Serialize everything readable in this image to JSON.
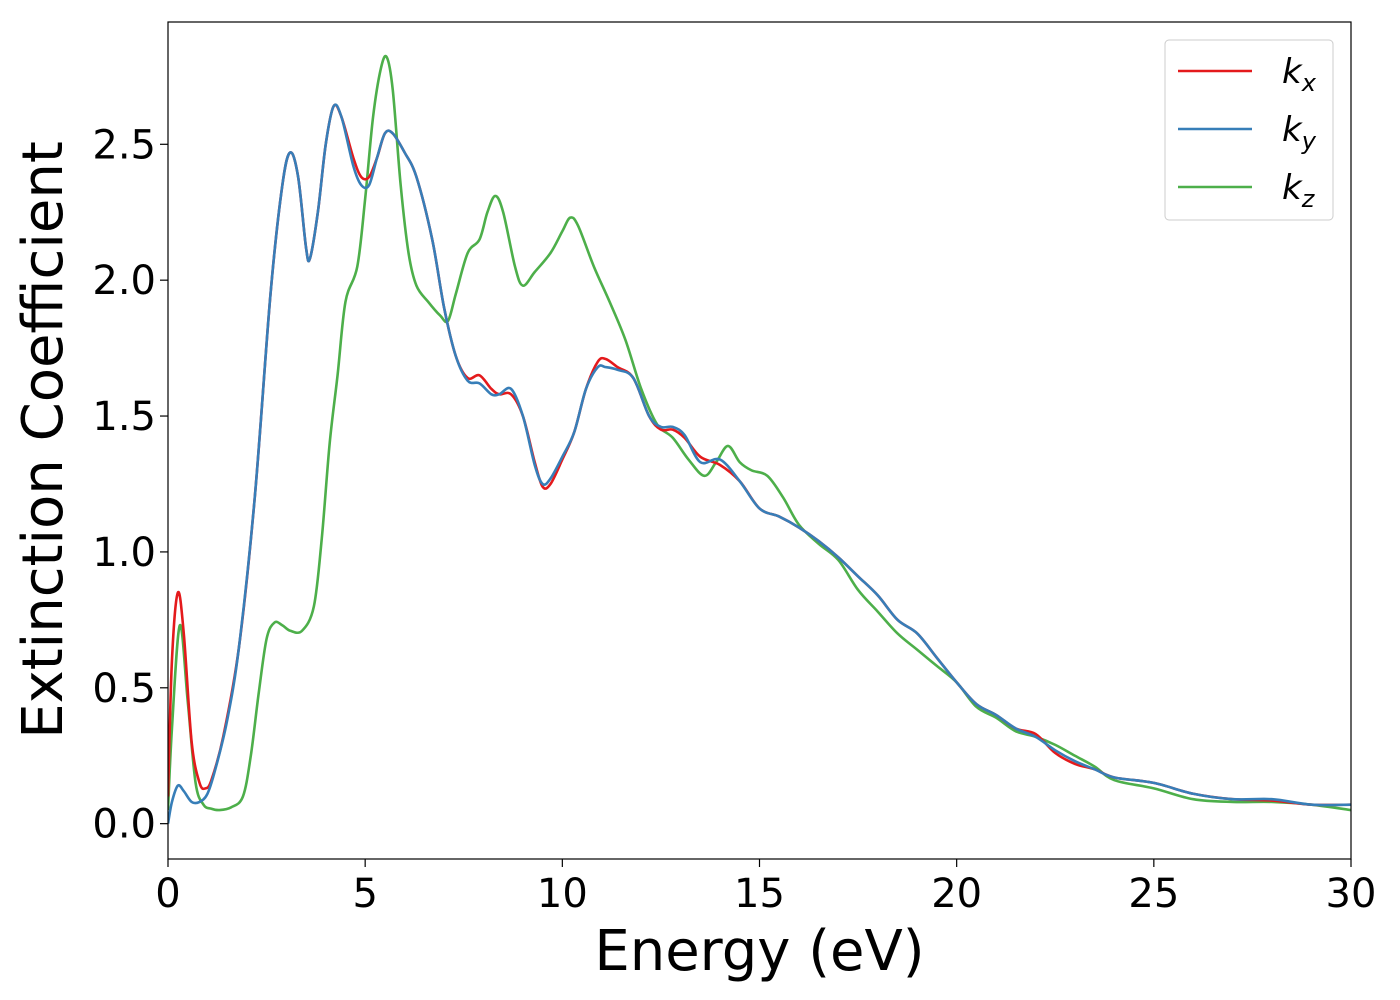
{
  "chart_data": {
    "type": "line",
    "xlabel": "Energy (eV)",
    "ylabel": "Extinction Coefficient",
    "xlim": [
      0,
      30
    ],
    "ylim": [
      -0.13,
      2.95
    ],
    "x_ticks": [
      0,
      5,
      10,
      15,
      20,
      25,
      30
    ],
    "x_tick_labels": [
      "0",
      "5",
      "10",
      "15",
      "20",
      "25",
      "30"
    ],
    "y_ticks": [
      0.0,
      0.5,
      1.0,
      1.5,
      2.0,
      2.5
    ],
    "y_tick_labels": [
      "0.0",
      "0.5",
      "1.0",
      "1.5",
      "2.0",
      "2.5"
    ],
    "grid": false,
    "legend_position": "top-right",
    "series": [
      {
        "name": "k_x",
        "label_base": "k",
        "label_sub": "x",
        "color": "#e41a1c",
        "points": [
          [
            0,
            0.1
          ],
          [
            0.1,
            0.6
          ],
          [
            0.25,
            0.85
          ],
          [
            0.4,
            0.7
          ],
          [
            0.6,
            0.3
          ],
          [
            0.8,
            0.15
          ],
          [
            0.95,
            0.13
          ],
          [
            1.1,
            0.16
          ],
          [
            1.4,
            0.32
          ],
          [
            1.8,
            0.65
          ],
          [
            2.2,
            1.2
          ],
          [
            2.6,
            1.95
          ],
          [
            2.9,
            2.35
          ],
          [
            3.1,
            2.47
          ],
          [
            3.3,
            2.38
          ],
          [
            3.5,
            2.12
          ],
          [
            3.6,
            2.08
          ],
          [
            3.8,
            2.25
          ],
          [
            4.0,
            2.5
          ],
          [
            4.2,
            2.64
          ],
          [
            4.4,
            2.6
          ],
          [
            4.7,
            2.45
          ],
          [
            4.9,
            2.38
          ],
          [
            5.1,
            2.38
          ],
          [
            5.3,
            2.45
          ],
          [
            5.5,
            2.54
          ],
          [
            5.7,
            2.54
          ],
          [
            6.0,
            2.47
          ],
          [
            6.3,
            2.38
          ],
          [
            6.7,
            2.15
          ],
          [
            7.0,
            1.9
          ],
          [
            7.3,
            1.72
          ],
          [
            7.6,
            1.64
          ],
          [
            7.9,
            1.65
          ],
          [
            8.2,
            1.6
          ],
          [
            8.4,
            1.58
          ],
          [
            8.7,
            1.58
          ],
          [
            9.0,
            1.5
          ],
          [
            9.3,
            1.33
          ],
          [
            9.5,
            1.24
          ],
          [
            9.7,
            1.25
          ],
          [
            10.0,
            1.34
          ],
          [
            10.3,
            1.44
          ],
          [
            10.6,
            1.6
          ],
          [
            10.9,
            1.7
          ],
          [
            11.1,
            1.71
          ],
          [
            11.4,
            1.68
          ],
          [
            11.8,
            1.64
          ],
          [
            12.2,
            1.5
          ],
          [
            12.5,
            1.45
          ],
          [
            12.8,
            1.45
          ],
          [
            13.1,
            1.42
          ],
          [
            13.5,
            1.35
          ],
          [
            14.0,
            1.32
          ],
          [
            14.5,
            1.26
          ],
          [
            15.0,
            1.16
          ],
          [
            15.5,
            1.13
          ],
          [
            16.0,
            1.09
          ],
          [
            16.5,
            1.04
          ],
          [
            17.0,
            0.98
          ],
          [
            17.5,
            0.91
          ],
          [
            18.0,
            0.84
          ],
          [
            18.5,
            0.75
          ],
          [
            19.0,
            0.7
          ],
          [
            19.5,
            0.61
          ],
          [
            20.0,
            0.52
          ],
          [
            20.5,
            0.44
          ],
          [
            21.0,
            0.4
          ],
          [
            21.5,
            0.35
          ],
          [
            22.0,
            0.33
          ],
          [
            22.5,
            0.26
          ],
          [
            23.0,
            0.22
          ],
          [
            23.5,
            0.2
          ],
          [
            24.0,
            0.17
          ],
          [
            25.0,
            0.15
          ],
          [
            26.0,
            0.11
          ],
          [
            27.0,
            0.09
          ],
          [
            28.0,
            0.085
          ],
          [
            29.0,
            0.07
          ],
          [
            30.0,
            0.07
          ]
        ]
      },
      {
        "name": "k_y",
        "label_base": "k",
        "label_sub": "y",
        "color": "#377eb8",
        "points": [
          [
            0,
            0.0
          ],
          [
            0.1,
            0.08
          ],
          [
            0.25,
            0.14
          ],
          [
            0.4,
            0.12
          ],
          [
            0.6,
            0.08
          ],
          [
            0.8,
            0.08
          ],
          [
            1.0,
            0.11
          ],
          [
            1.2,
            0.2
          ],
          [
            1.5,
            0.38
          ],
          [
            1.8,
            0.65
          ],
          [
            2.2,
            1.2
          ],
          [
            2.6,
            1.95
          ],
          [
            2.9,
            2.35
          ],
          [
            3.1,
            2.47
          ],
          [
            3.3,
            2.38
          ],
          [
            3.5,
            2.12
          ],
          [
            3.6,
            2.08
          ],
          [
            3.8,
            2.25
          ],
          [
            4.0,
            2.5
          ],
          [
            4.2,
            2.64
          ],
          [
            4.4,
            2.6
          ],
          [
            4.7,
            2.42
          ],
          [
            4.9,
            2.35
          ],
          [
            5.1,
            2.35
          ],
          [
            5.3,
            2.45
          ],
          [
            5.5,
            2.54
          ],
          [
            5.7,
            2.54
          ],
          [
            6.0,
            2.47
          ],
          [
            6.3,
            2.38
          ],
          [
            6.7,
            2.15
          ],
          [
            7.0,
            1.9
          ],
          [
            7.3,
            1.72
          ],
          [
            7.6,
            1.63
          ],
          [
            7.9,
            1.62
          ],
          [
            8.2,
            1.58
          ],
          [
            8.4,
            1.58
          ],
          [
            8.7,
            1.6
          ],
          [
            9.0,
            1.5
          ],
          [
            9.3,
            1.32
          ],
          [
            9.5,
            1.25
          ],
          [
            9.7,
            1.27
          ],
          [
            10.0,
            1.35
          ],
          [
            10.3,
            1.44
          ],
          [
            10.6,
            1.6
          ],
          [
            10.9,
            1.68
          ],
          [
            11.1,
            1.68
          ],
          [
            11.4,
            1.67
          ],
          [
            11.8,
            1.64
          ],
          [
            12.2,
            1.5
          ],
          [
            12.5,
            1.46
          ],
          [
            12.8,
            1.46
          ],
          [
            13.1,
            1.43
          ],
          [
            13.5,
            1.33
          ],
          [
            14.0,
            1.34
          ],
          [
            14.5,
            1.26
          ],
          [
            15.0,
            1.16
          ],
          [
            15.5,
            1.13
          ],
          [
            16.0,
            1.09
          ],
          [
            16.5,
            1.04
          ],
          [
            17.0,
            0.98
          ],
          [
            17.5,
            0.91
          ],
          [
            18.0,
            0.84
          ],
          [
            18.5,
            0.75
          ],
          [
            19.0,
            0.7
          ],
          [
            19.5,
            0.61
          ],
          [
            20.0,
            0.52
          ],
          [
            20.5,
            0.44
          ],
          [
            21.0,
            0.4
          ],
          [
            21.5,
            0.35
          ],
          [
            22.0,
            0.32
          ],
          [
            22.5,
            0.27
          ],
          [
            23.0,
            0.23
          ],
          [
            23.5,
            0.2
          ],
          [
            24.0,
            0.17
          ],
          [
            25.0,
            0.15
          ],
          [
            26.0,
            0.11
          ],
          [
            27.0,
            0.09
          ],
          [
            28.0,
            0.09
          ],
          [
            29.0,
            0.07
          ],
          [
            30.0,
            0.07
          ]
        ]
      },
      {
        "name": "k_z",
        "label_base": "k",
        "label_sub": "z",
        "color": "#4daf4a",
        "points": [
          [
            0,
            0.05
          ],
          [
            0.1,
            0.35
          ],
          [
            0.3,
            0.73
          ],
          [
            0.5,
            0.45
          ],
          [
            0.7,
            0.15
          ],
          [
            0.9,
            0.07
          ],
          [
            1.1,
            0.055
          ],
          [
            1.3,
            0.05
          ],
          [
            1.6,
            0.06
          ],
          [
            1.9,
            0.1
          ],
          [
            2.1,
            0.25
          ],
          [
            2.3,
            0.48
          ],
          [
            2.5,
            0.68
          ],
          [
            2.7,
            0.74
          ],
          [
            2.9,
            0.73
          ],
          [
            3.1,
            0.71
          ],
          [
            3.4,
            0.71
          ],
          [
            3.7,
            0.8
          ],
          [
            3.9,
            1.05
          ],
          [
            4.1,
            1.4
          ],
          [
            4.3,
            1.65
          ],
          [
            4.5,
            1.92
          ],
          [
            4.8,
            2.05
          ],
          [
            5.0,
            2.3
          ],
          [
            5.2,
            2.6
          ],
          [
            5.4,
            2.78
          ],
          [
            5.55,
            2.82
          ],
          [
            5.7,
            2.7
          ],
          [
            5.9,
            2.35
          ],
          [
            6.1,
            2.1
          ],
          [
            6.3,
            1.98
          ],
          [
            6.6,
            1.92
          ],
          [
            6.9,
            1.87
          ],
          [
            7.1,
            1.85
          ],
          [
            7.3,
            1.95
          ],
          [
            7.6,
            2.1
          ],
          [
            7.9,
            2.15
          ],
          [
            8.1,
            2.25
          ],
          [
            8.3,
            2.31
          ],
          [
            8.5,
            2.25
          ],
          [
            8.8,
            2.05
          ],
          [
            9.0,
            1.98
          ],
          [
            9.3,
            2.03
          ],
          [
            9.7,
            2.1
          ],
          [
            10.0,
            2.18
          ],
          [
            10.2,
            2.23
          ],
          [
            10.4,
            2.2
          ],
          [
            10.8,
            2.05
          ],
          [
            11.2,
            1.92
          ],
          [
            11.6,
            1.78
          ],
          [
            12.0,
            1.6
          ],
          [
            12.4,
            1.47
          ],
          [
            12.8,
            1.42
          ],
          [
            13.2,
            1.34
          ],
          [
            13.6,
            1.28
          ],
          [
            13.9,
            1.33
          ],
          [
            14.2,
            1.39
          ],
          [
            14.5,
            1.33
          ],
          [
            14.8,
            1.3
          ],
          [
            15.2,
            1.28
          ],
          [
            15.6,
            1.2
          ],
          [
            16.0,
            1.1
          ],
          [
            16.5,
            1.03
          ],
          [
            17.0,
            0.97
          ],
          [
            17.5,
            0.86
          ],
          [
            18.0,
            0.78
          ],
          [
            18.5,
            0.7
          ],
          [
            19.0,
            0.64
          ],
          [
            19.5,
            0.58
          ],
          [
            20.0,
            0.52
          ],
          [
            20.5,
            0.43
          ],
          [
            21.0,
            0.39
          ],
          [
            21.5,
            0.34
          ],
          [
            22.0,
            0.32
          ],
          [
            22.5,
            0.29
          ],
          [
            23.0,
            0.25
          ],
          [
            23.5,
            0.21
          ],
          [
            24.0,
            0.16
          ],
          [
            25.0,
            0.13
          ],
          [
            26.0,
            0.09
          ],
          [
            27.0,
            0.08
          ],
          [
            28.0,
            0.08
          ],
          [
            29.0,
            0.07
          ],
          [
            30.0,
            0.05
          ]
        ]
      }
    ]
  }
}
